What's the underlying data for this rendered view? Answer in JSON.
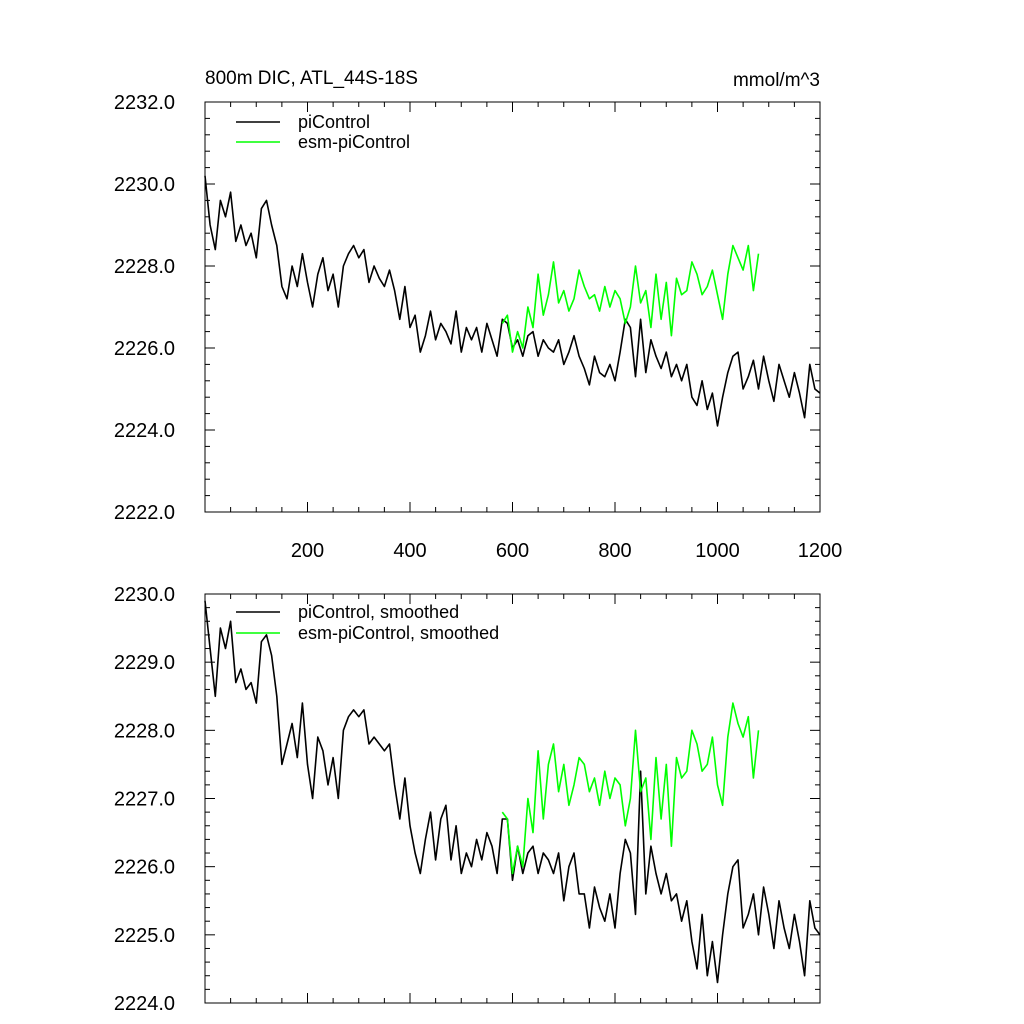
{
  "chart_data": [
    {
      "type": "line",
      "title": "800m DIC, ATL_44S-18S",
      "units": "mmol/m^3",
      "xlim": [
        0,
        1200
      ],
      "ylim": [
        2222.0,
        2232.0
      ],
      "xticks": [
        200,
        400,
        600,
        800,
        1000,
        1200
      ],
      "xtick_labels": [
        "200",
        "400",
        "600",
        "800",
        "1000",
        "1200"
      ],
      "yticks": [
        2222.0,
        2224.0,
        2226.0,
        2228.0,
        2230.0,
        2232.0
      ],
      "ytick_labels": [
        "2222.0",
        "2224.0",
        "2226.0",
        "2228.0",
        "2230.0",
        "2232.0"
      ],
      "legend_position": "top-left",
      "series": [
        {
          "name": "piControl",
          "color": "#000000",
          "x": [
            0,
            10,
            20,
            30,
            40,
            50,
            60,
            70,
            80,
            90,
            100,
            110,
            120,
            130,
            140,
            150,
            160,
            170,
            180,
            190,
            200,
            210,
            220,
            230,
            240,
            250,
            260,
            270,
            280,
            290,
            300,
            310,
            320,
            330,
            340,
            350,
            360,
            370,
            380,
            390,
            400,
            410,
            420,
            430,
            440,
            450,
            460,
            470,
            480,
            490,
            500,
            510,
            520,
            530,
            540,
            550,
            560,
            570,
            580,
            590,
            600,
            610,
            620,
            630,
            640,
            650,
            660,
            670,
            680,
            690,
            700,
            710,
            720,
            730,
            740,
            750,
            760,
            770,
            780,
            790,
            800,
            810,
            820,
            830,
            840,
            850,
            860,
            870,
            880,
            890,
            900,
            910,
            920,
            930,
            940,
            950,
            960,
            970,
            980,
            990,
            1000,
            1010,
            1020,
            1030,
            1040,
            1050,
            1060,
            1070,
            1080,
            1090,
            1100,
            1110,
            1120,
            1130,
            1140,
            1150,
            1160,
            1170,
            1180,
            1190,
            1200
          ],
          "y": [
            2230.2,
            2229.0,
            2228.4,
            2229.6,
            2229.2,
            2229.8,
            2228.6,
            2229.0,
            2228.5,
            2228.8,
            2228.2,
            2229.4,
            2229.6,
            2229.0,
            2228.5,
            2227.5,
            2227.2,
            2228.0,
            2227.5,
            2228.3,
            2227.6,
            2227.0,
            2227.8,
            2228.2,
            2227.4,
            2227.8,
            2227.0,
            2228.0,
            2228.3,
            2228.5,
            2228.2,
            2228.4,
            2227.6,
            2228.0,
            2227.7,
            2227.5,
            2227.9,
            2227.4,
            2226.7,
            2227.5,
            2226.5,
            2226.8,
            2225.9,
            2226.3,
            2226.9,
            2226.2,
            2226.6,
            2226.4,
            2226.1,
            2226.9,
            2225.9,
            2226.5,
            2226.2,
            2226.5,
            2225.9,
            2226.6,
            2226.2,
            2225.8,
            2226.7,
            2226.6,
            2226.0,
            2226.2,
            2225.8,
            2226.3,
            2226.4,
            2225.8,
            2226.2,
            2226.0,
            2225.9,
            2226.2,
            2225.6,
            2225.9,
            2226.3,
            2225.8,
            2225.5,
            2225.1,
            2225.8,
            2225.4,
            2225.3,
            2225.6,
            2225.2,
            2225.9,
            2226.7,
            2226.5,
            2225.3,
            2226.7,
            2225.4,
            2226.2,
            2225.8,
            2225.5,
            2225.9,
            2225.3,
            2225.6,
            2225.2,
            2225.6,
            2224.8,
            2224.6,
            2225.2,
            2224.5,
            2224.9,
            2224.1,
            2224.8,
            2225.4,
            2225.8,
            2225.9,
            2225.0,
            2225.3,
            2225.7,
            2225.0,
            2225.8,
            2225.2,
            2224.7,
            2225.6,
            2225.2,
            2224.8,
            2225.4,
            2224.9,
            2224.3,
            2225.6,
            2225.0,
            2224.9
          ]
        },
        {
          "name": "esm-piControl",
          "color": "#00ff00",
          "x": [
            580,
            590,
            600,
            610,
            620,
            630,
            640,
            650,
            660,
            670,
            680,
            690,
            700,
            710,
            720,
            730,
            740,
            750,
            760,
            770,
            780,
            790,
            800,
            810,
            820,
            830,
            840,
            850,
            860,
            870,
            880,
            890,
            900,
            910,
            920,
            930,
            940,
            950,
            960,
            970,
            980,
            990,
            1000,
            1010,
            1020,
            1030,
            1040,
            1050,
            1060,
            1070,
            1080
          ],
          "y": [
            2226.6,
            2226.8,
            2225.9,
            2226.4,
            2226.0,
            2227.0,
            2226.5,
            2227.8,
            2226.8,
            2227.3,
            2228.1,
            2227.1,
            2227.4,
            2226.9,
            2227.2,
            2227.9,
            2227.5,
            2227.2,
            2227.3,
            2226.9,
            2227.5,
            2227.0,
            2227.4,
            2227.2,
            2226.6,
            2227.0,
            2228.0,
            2227.1,
            2227.4,
            2226.5,
            2227.8,
            2226.7,
            2227.6,
            2226.3,
            2227.7,
            2227.3,
            2227.4,
            2228.1,
            2227.8,
            2227.3,
            2227.5,
            2227.9,
            2227.3,
            2226.7,
            2227.8,
            2228.5,
            2228.2,
            2227.9,
            2228.5,
            2227.4,
            2228.3
          ]
        }
      ]
    },
    {
      "type": "line",
      "xlim": [
        0,
        1200
      ],
      "ylim": [
        2224.0,
        2230.0
      ],
      "xticks": [
        200,
        400,
        600,
        800,
        1000,
        1200
      ],
      "yticks": [
        2224.0,
        2225.0,
        2226.0,
        2227.0,
        2228.0,
        2229.0,
        2230.0
      ],
      "ytick_labels": [
        "2224.0",
        "2225.0",
        "2226.0",
        "2227.0",
        "2228.0",
        "2229.0",
        "2230.0"
      ],
      "legend_position": "top-left",
      "series": [
        {
          "name": "piControl, smoothed",
          "color": "#000000",
          "x": [
            0,
            10,
            20,
            30,
            40,
            50,
            60,
            70,
            80,
            90,
            100,
            110,
            120,
            130,
            140,
            150,
            160,
            170,
            180,
            190,
            200,
            210,
            220,
            230,
            240,
            250,
            260,
            270,
            280,
            290,
            300,
            310,
            320,
            330,
            340,
            350,
            360,
            370,
            380,
            390,
            400,
            410,
            420,
            430,
            440,
            450,
            460,
            470,
            480,
            490,
            500,
            510,
            520,
            530,
            540,
            550,
            560,
            570,
            580,
            590,
            600,
            610,
            620,
            630,
            640,
            650,
            660,
            670,
            680,
            690,
            700,
            710,
            720,
            730,
            740,
            750,
            760,
            770,
            780,
            790,
            800,
            810,
            820,
            830,
            840,
            850,
            860,
            870,
            880,
            890,
            900,
            910,
            920,
            930,
            940,
            950,
            960,
            970,
            980,
            990,
            1000,
            1010,
            1020,
            1030,
            1040,
            1050,
            1060,
            1070,
            1080,
            1090,
            1100,
            1110,
            1120,
            1130,
            1140,
            1150,
            1160,
            1170,
            1180,
            1190,
            1200
          ],
          "y": [
            2229.9,
            2229.2,
            2228.5,
            2229.5,
            2229.2,
            2229.6,
            2228.7,
            2228.9,
            2228.6,
            2228.7,
            2228.4,
            2229.3,
            2229.4,
            2229.1,
            2228.5,
            2227.5,
            2227.8,
            2228.1,
            2227.6,
            2228.4,
            2227.5,
            2227.0,
            2227.9,
            2227.7,
            2227.2,
            2227.6,
            2227.0,
            2228.0,
            2228.2,
            2228.3,
            2228.2,
            2228.3,
            2227.8,
            2227.9,
            2227.8,
            2227.7,
            2227.8,
            2227.2,
            2226.7,
            2227.3,
            2226.6,
            2226.2,
            2225.9,
            2226.4,
            2226.8,
            2226.1,
            2226.7,
            2226.9,
            2226.1,
            2226.6,
            2225.9,
            2226.2,
            2226.0,
            2226.4,
            2226.1,
            2226.5,
            2226.3,
            2225.9,
            2226.7,
            2226.7,
            2225.8,
            2226.3,
            2225.9,
            2226.2,
            2226.3,
            2225.9,
            2226.2,
            2226.1,
            2225.9,
            2226.2,
            2225.5,
            2226.0,
            2226.2,
            2225.6,
            2225.6,
            2225.1,
            2225.7,
            2225.4,
            2225.2,
            2225.6,
            2225.1,
            2225.9,
            2226.4,
            2226.2,
            2225.3,
            2227.4,
            2225.6,
            2226.3,
            2225.9,
            2225.6,
            2225.9,
            2225.5,
            2225.6,
            2225.2,
            2225.5,
            2224.9,
            2224.5,
            2225.3,
            2224.4,
            2224.9,
            2224.3,
            2225.0,
            2225.6,
            2226.0,
            2226.1,
            2225.1,
            2225.3,
            2225.6,
            2225.0,
            2225.7,
            2225.3,
            2224.8,
            2225.5,
            2225.1,
            2224.8,
            2225.3,
            2224.9,
            2224.4,
            2225.5,
            2225.1,
            2225.0
          ]
        },
        {
          "name": "esm-piControl, smoothed",
          "color": "#00ff00",
          "x": [
            580,
            590,
            600,
            610,
            620,
            630,
            640,
            650,
            660,
            670,
            680,
            690,
            700,
            710,
            720,
            730,
            740,
            750,
            760,
            770,
            780,
            790,
            800,
            810,
            820,
            830,
            840,
            850,
            860,
            870,
            880,
            890,
            900,
            910,
            920,
            930,
            940,
            950,
            960,
            970,
            980,
            990,
            1000,
            1010,
            1020,
            1030,
            1040,
            1050,
            1060,
            1070,
            1080
          ],
          "y": [
            2226.8,
            2226.7,
            2225.9,
            2226.3,
            2226.0,
            2227.0,
            2226.5,
            2227.7,
            2226.7,
            2227.5,
            2227.8,
            2227.1,
            2227.5,
            2226.9,
            2227.2,
            2227.6,
            2227.5,
            2227.1,
            2227.3,
            2226.9,
            2227.4,
            2227.0,
            2227.3,
            2227.2,
            2226.6,
            2227.0,
            2228.0,
            2227.1,
            2227.3,
            2226.4,
            2227.6,
            2226.7,
            2227.5,
            2226.3,
            2227.6,
            2227.3,
            2227.4,
            2228.0,
            2227.8,
            2227.4,
            2227.5,
            2227.9,
            2227.2,
            2226.9,
            2227.9,
            2228.4,
            2228.1,
            2227.9,
            2228.2,
            2227.3,
            2228.0
          ]
        }
      ]
    }
  ]
}
